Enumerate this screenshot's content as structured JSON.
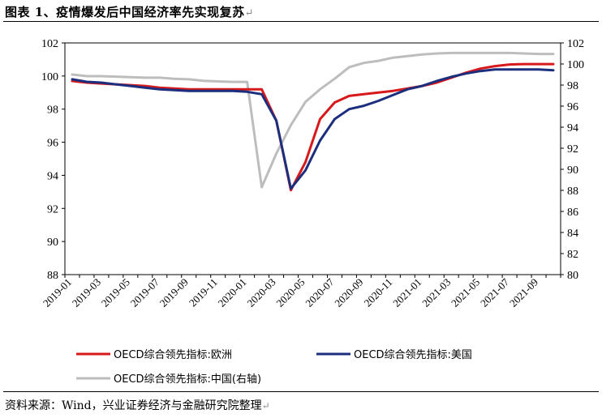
{
  "header": {
    "title": "图表 1、疫情爆发后中国经济率先实现复苏",
    "return_mark": "↵"
  },
  "footer": {
    "source": "资料来源：Wind，兴业证券经济与金融研究院整理",
    "return_mark": "↵"
  },
  "chart_data": {
    "type": "line",
    "title": "疫情爆发后中国经济率先实现复苏",
    "x": [
      "2019-01",
      "2019-02",
      "2019-03",
      "2019-04",
      "2019-05",
      "2019-06",
      "2019-07",
      "2019-08",
      "2019-09",
      "2019-10",
      "2019-11",
      "2019-12",
      "2020-01",
      "2020-02",
      "2020-03",
      "2020-04",
      "2020-05",
      "2020-06",
      "2020-07",
      "2020-08",
      "2020-09",
      "2020-10",
      "2020-11",
      "2020-12",
      "2021-01",
      "2021-02",
      "2021-03",
      "2021-04",
      "2021-05",
      "2021-06",
      "2021-07",
      "2021-08",
      "2021-09",
      "2021-10"
    ],
    "x_tick_labels": [
      "2019-01",
      "2019-03",
      "2019-05",
      "2019-07",
      "2019-09",
      "2019-11",
      "2020-01",
      "2020-03",
      "2020-05",
      "2020-07",
      "2020-09",
      "2020-11",
      "2021-01",
      "2021-03",
      "2021-05",
      "2021-07",
      "2021-09"
    ],
    "left_axis": {
      "ylim": [
        88,
        102
      ],
      "ticks": [
        "88",
        "90",
        "92",
        "94",
        "96",
        "98",
        "100",
        "102"
      ]
    },
    "right_axis": {
      "ylim": [
        80,
        102
      ],
      "ticks": [
        "80",
        "82",
        "84",
        "86",
        "88",
        "90",
        "92",
        "94",
        "96",
        "98",
        "100",
        "102"
      ]
    },
    "series": [
      {
        "name": "OECD综合领先指标:欧洲",
        "axis": "left",
        "color": "#d7191c",
        "values": [
          99.7,
          99.6,
          99.55,
          99.5,
          99.45,
          99.4,
          99.3,
          99.25,
          99.2,
          99.2,
          99.2,
          99.2,
          99.2,
          99.2,
          97.3,
          93.1,
          94.8,
          97.4,
          98.4,
          98.8,
          98.9,
          99.0,
          99.1,
          99.25,
          99.4,
          99.6,
          99.9,
          100.2,
          100.45,
          100.6,
          100.7,
          100.72,
          100.72,
          100.72
        ]
      },
      {
        "name": "OECD综合领先指标:美国",
        "axis": "left",
        "color": "#1c2f7e",
        "values": [
          99.8,
          99.65,
          99.6,
          99.5,
          99.4,
          99.3,
          99.2,
          99.15,
          99.1,
          99.1,
          99.1,
          99.1,
          99.05,
          98.9,
          97.3,
          93.2,
          94.3,
          96.1,
          97.4,
          98.0,
          98.2,
          98.5,
          98.85,
          99.2,
          99.4,
          99.7,
          99.95,
          100.15,
          100.3,
          100.4,
          100.4,
          100.4,
          100.4,
          100.35
        ]
      },
      {
        "name": "OECD综合领先指标:中国(右轴)",
        "axis": "right",
        "color": "#bdbdbd",
        "values": [
          99.0,
          98.85,
          98.85,
          98.8,
          98.75,
          98.7,
          98.7,
          98.6,
          98.55,
          98.4,
          98.35,
          98.3,
          98.3,
          88.3,
          91.5,
          94.2,
          96.4,
          97.6,
          98.6,
          99.7,
          100.1,
          100.3,
          100.6,
          100.75,
          100.9,
          101.0,
          101.05,
          101.05,
          101.05,
          101.05,
          101.05,
          101.0,
          100.95,
          100.95
        ]
      }
    ],
    "legend": [
      {
        "label": "OECD综合领先指标:欧洲",
        "color": "#d7191c"
      },
      {
        "label": "OECD综合领先指标:美国",
        "color": "#1c2f7e"
      },
      {
        "label": "OECD综合领先指标:中国(右轴)",
        "color": "#bdbdbd"
      }
    ],
    "legend_position": "bottom",
    "grid": false
  }
}
